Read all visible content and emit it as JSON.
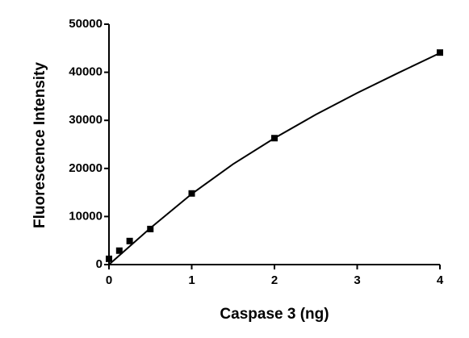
{
  "chart_data": {
    "type": "scatter",
    "x_label": "Caspase 3 (ng)",
    "y_label": "Fluorescence Intensity",
    "x": [
      0,
      0.125,
      0.25,
      0.5,
      1,
      2,
      4
    ],
    "values": [
      1200,
      2900,
      4900,
      7400,
      14800,
      26300,
      44100
    ],
    "color": "#000000",
    "fit": {
      "x": [
        0,
        0.5,
        1,
        1.5,
        2,
        2.5,
        3,
        3.5,
        4
      ],
      "values": [
        0,
        7600,
        14700,
        20900,
        26300,
        31200,
        35700,
        39900,
        44000
      ]
    },
    "xlim": [
      0,
      4
    ],
    "xticks": [
      0,
      1,
      2,
      3,
      4
    ],
    "ylim": [
      0,
      50000
    ],
    "yticks": [
      0,
      10000,
      20000,
      30000,
      40000,
      50000
    ]
  }
}
